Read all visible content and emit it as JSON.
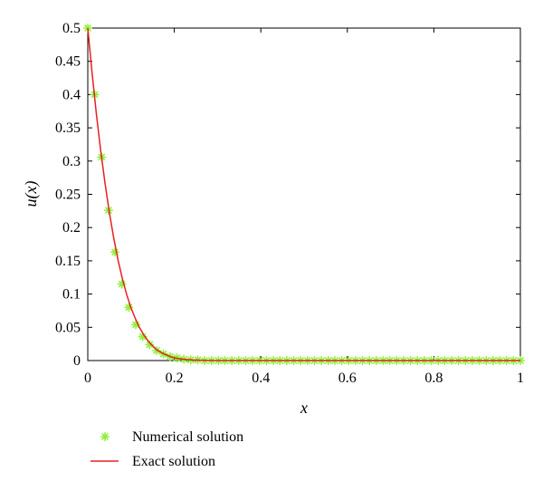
{
  "chart_data": {
    "type": "line",
    "title": "",
    "xlabel": "x",
    "ylabel": "u(x)",
    "xlim": [
      0,
      1
    ],
    "ylim": [
      0,
      0.5
    ],
    "xticks": [
      0,
      0.2,
      0.4,
      0.6,
      0.8,
      1
    ],
    "xtick_labels": [
      "0",
      "0.2",
      "0.4",
      "0.6",
      "0.8",
      "1"
    ],
    "yticks": [
      0,
      0.05,
      0.1,
      0.15,
      0.2,
      0.25,
      0.3,
      0.35,
      0.4,
      0.45,
      0.5
    ],
    "ytick_labels": [
      "0",
      "0.05",
      "0.1",
      "0.15",
      "0.2",
      "0.25",
      "0.3",
      "0.35",
      "0.4",
      "0.45",
      "0.5"
    ],
    "grid": false,
    "legend_position": "below-left",
    "series": [
      {
        "name": "Numerical solution",
        "style": "marker",
        "marker": "asterisk",
        "color": "#8ef03c",
        "x": [
          0,
          0.016,
          0.032,
          0.048,
          0.063,
          0.079,
          0.095,
          0.111,
          0.127,
          0.143,
          0.159,
          0.175,
          0.19,
          0.206,
          0.222,
          0.238,
          0.254,
          0.27,
          0.286,
          0.302,
          0.317,
          0.333,
          0.349,
          0.365,
          0.381,
          0.397,
          0.413,
          0.429,
          0.444,
          0.46,
          0.476,
          0.492,
          0.508,
          0.524,
          0.54,
          0.556,
          0.571,
          0.587,
          0.603,
          0.619,
          0.635,
          0.651,
          0.667,
          0.683,
          0.698,
          0.714,
          0.73,
          0.746,
          0.762,
          0.778,
          0.794,
          0.81,
          0.825,
          0.841,
          0.857,
          0.873,
          0.889,
          0.905,
          0.921,
          0.937,
          0.952,
          0.968,
          0.984,
          1
        ],
        "y": [
          0.5,
          0.4,
          0.306,
          0.226,
          0.163,
          0.115,
          0.08,
          0.054,
          0.036,
          0.024,
          0.015,
          0.01,
          0.006,
          0.004,
          0.002,
          0.001,
          0.001,
          0,
          0,
          0,
          0,
          0,
          0,
          0,
          0,
          0,
          0,
          0,
          0,
          0,
          0,
          0,
          0,
          0,
          0,
          0,
          0,
          0,
          0,
          0,
          0,
          0,
          0,
          0,
          0,
          0,
          0,
          0,
          0,
          0,
          0,
          0,
          0,
          0,
          0,
          0,
          0,
          0,
          0,
          0,
          0,
          0,
          0,
          0
        ]
      },
      {
        "name": "Exact solution",
        "style": "line",
        "color": "#e8201e",
        "x": [
          0,
          0.01,
          0.02,
          0.03,
          0.04,
          0.05,
          0.06,
          0.07,
          0.08,
          0.09,
          0.1,
          0.11,
          0.12,
          0.13,
          0.14,
          0.15,
          0.16,
          0.17,
          0.18,
          0.19,
          0.2,
          0.22,
          0.24,
          0.26,
          0.28,
          0.3,
          0.35,
          0.4,
          0.5,
          0.6,
          0.7,
          0.8,
          0.9,
          1
        ],
        "y": [
          0.5,
          0.432,
          0.37,
          0.315,
          0.266,
          0.222,
          0.184,
          0.151,
          0.123,
          0.099,
          0.079,
          0.063,
          0.049,
          0.038,
          0.029,
          0.022,
          0.016,
          0.012,
          0.009,
          0.006,
          0.004,
          0.002,
          0.001,
          0.0005,
          0.0002,
          0,
          0,
          0,
          0,
          0,
          0,
          0,
          0,
          0
        ]
      }
    ]
  }
}
